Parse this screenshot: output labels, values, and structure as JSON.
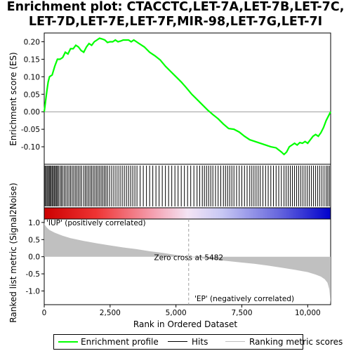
{
  "title_lines": [
    "Enrichment plot: CTACCTC,LET-7A,LET-7B,LET-7C,",
    "LET-7D,LET-7E,LET-7F,MIR-98,LET-7G,LET-7I"
  ],
  "chart_data": {
    "type": "line",
    "title": "Enrichment plot: CTACCTC,LET-7A,LET-7B,LET-7C,LET-7D,LET-7E,LET-7F,MIR-98,LET-7G,LET-7I",
    "enrichment_profile": {
      "ylabel": "Enrichment score (ES)",
      "ylim": [
        -0.15,
        0.225
      ],
      "yticks": [
        "0.20",
        "0.15",
        "0.10",
        "0.05",
        "0.00",
        "-0.05",
        "-0.10"
      ],
      "ytick_values": [
        0.2,
        0.15,
        0.1,
        0.05,
        0.0,
        -0.05,
        -0.1
      ],
      "color": "#00ff00",
      "x": [
        0,
        50,
        100,
        150,
        200,
        300,
        400,
        500,
        600,
        700,
        800,
        900,
        1000,
        1100,
        1200,
        1300,
        1400,
        1500,
        1600,
        1700,
        1800,
        1900,
        2000,
        2100,
        2200,
        2300,
        2400,
        2500,
        2600,
        2700,
        2800,
        2900,
        3000,
        3100,
        3200,
        3300,
        3400,
        3500,
        3600,
        3800,
        4000,
        4200,
        4400,
        4600,
        4800,
        5000,
        5200,
        5400,
        5600,
        5800,
        6000,
        6200,
        6400,
        6600,
        6800,
        7000,
        7200,
        7400,
        7600,
        7800,
        8000,
        8200,
        8400,
        8600,
        8800,
        9000,
        9100,
        9200,
        9300,
        9400,
        9500,
        9600,
        9700,
        9800,
        9900,
        10000,
        10100,
        10200,
        10300,
        10400,
        10500,
        10600,
        10700,
        10800,
        10870
      ],
      "y": [
        0.0,
        0.03,
        0.06,
        0.085,
        0.1,
        0.105,
        0.13,
        0.15,
        0.15,
        0.155,
        0.17,
        0.165,
        0.18,
        0.18,
        0.19,
        0.185,
        0.175,
        0.17,
        0.185,
        0.195,
        0.19,
        0.2,
        0.205,
        0.21,
        0.208,
        0.205,
        0.198,
        0.2,
        0.2,
        0.205,
        0.2,
        0.202,
        0.205,
        0.205,
        0.205,
        0.2,
        0.205,
        0.2,
        0.195,
        0.185,
        0.17,
        0.16,
        0.148,
        0.13,
        0.115,
        0.1,
        0.085,
        0.068,
        0.05,
        0.035,
        0.02,
        0.005,
        -0.008,
        -0.02,
        -0.035,
        -0.048,
        -0.05,
        -0.058,
        -0.07,
        -0.08,
        -0.085,
        -0.09,
        -0.095,
        -0.1,
        -0.103,
        -0.115,
        -0.122,
        -0.115,
        -0.1,
        -0.095,
        -0.09,
        -0.095,
        -0.088,
        -0.09,
        -0.085,
        -0.09,
        -0.08,
        -0.07,
        -0.065,
        -0.07,
        -0.06,
        -0.045,
        -0.025,
        -0.01,
        0.0
      ]
    },
    "hits": {
      "tick_color": "#000000",
      "positions": [
        30,
        70,
        110,
        150,
        190,
        220,
        260,
        300,
        340,
        380,
        420,
        460,
        500,
        540,
        600,
        650,
        700,
        760,
        820,
        880,
        940,
        1000,
        1060,
        1120,
        1180,
        1240,
        1300,
        1360,
        1420,
        1500,
        1560,
        1620,
        1680,
        1740,
        1800,
        1860,
        1920,
        1980,
        2040,
        2100,
        2160,
        2220,
        2280,
        2340,
        2400,
        2480,
        2560,
        2640,
        2720,
        2800,
        2880,
        2960,
        3040,
        3120,
        3200,
        3280,
        3360,
        3440,
        3520,
        3640,
        3760,
        3880,
        4000,
        4120,
        4240,
        4360,
        4480,
        4600,
        4720,
        4840,
        4960,
        5080,
        5200,
        5320,
        5440,
        5560,
        5680,
        5800,
        5900,
        6000,
        6080,
        6160,
        6240,
        6320,
        6400,
        6500,
        6600,
        6700,
        6800,
        6880,
        6960,
        7040,
        7120,
        7200,
        7300,
        7400,
        7500,
        7600,
        7700,
        7800,
        7880,
        7960,
        8040,
        8120,
        8200,
        8300,
        8400,
        8500,
        8600,
        8700,
        8800,
        8900,
        9000,
        9100,
        9180,
        9260,
        9340,
        9420,
        9500,
        9580,
        9660,
        9740,
        9820,
        9900,
        9980,
        10060,
        10140,
        10220,
        10300,
        10380,
        10460,
        10540,
        10620,
        10700,
        10760,
        10820
      ]
    },
    "ranked_metric": {
      "ylabel": "Ranked list metric (Signal2Noise)",
      "xlabel": "Rank in Ordered Dataset",
      "ylim": [
        -1.4,
        1.1
      ],
      "yticks": [
        "1.0",
        "0.5",
        "0.0",
        "-0.5",
        "-1.0"
      ],
      "ytick_values": [
        1.0,
        0.5,
        0.0,
        -0.5,
        -1.0
      ],
      "xticks": [
        "0",
        "2,500",
        "5,000",
        "7,500",
        "10,000"
      ],
      "xtick_values": [
        0,
        2500,
        5000,
        7500,
        10000
      ],
      "xlim": [
        0,
        11000
      ],
      "fill_color": "#c0c0c0",
      "x": [
        0,
        20,
        100,
        200,
        400,
        700,
        1000,
        1500,
        2000,
        2500,
        3000,
        3500,
        4000,
        4500,
        5000,
        5482,
        6000,
        6500,
        7000,
        7500,
        8000,
        8500,
        9000,
        9500,
        10000,
        10300,
        10500,
        10650,
        10750,
        10820,
        10870
      ],
      "y": [
        1.0,
        0.93,
        0.85,
        0.78,
        0.7,
        0.61,
        0.54,
        0.46,
        0.39,
        0.33,
        0.27,
        0.22,
        0.16,
        0.11,
        0.05,
        0.0,
        -0.05,
        -0.09,
        -0.13,
        -0.17,
        -0.21,
        -0.26,
        -0.32,
        -0.38,
        -0.45,
        -0.52,
        -0.58,
        -0.66,
        -0.76,
        -0.95,
        -1.38
      ],
      "zero_cross_label": "Zero cross at 5482",
      "zero_cross_rank": 5482,
      "positive_label": "'IUP' (positively correlated)",
      "negative_label": "'EP' (negatively correlated)",
      "positive_color": "#cc0000",
      "negative_color": "#0000cc"
    },
    "total_ranks": 10870,
    "legend": {
      "placement": "bottom",
      "entries": [
        {
          "label": "Enrichment profile",
          "color": "#00ff00"
        },
        {
          "label": "Hits",
          "color": "#000000"
        },
        {
          "label": "Ranking metric scores",
          "color": "#c0c0c0"
        }
      ]
    }
  }
}
